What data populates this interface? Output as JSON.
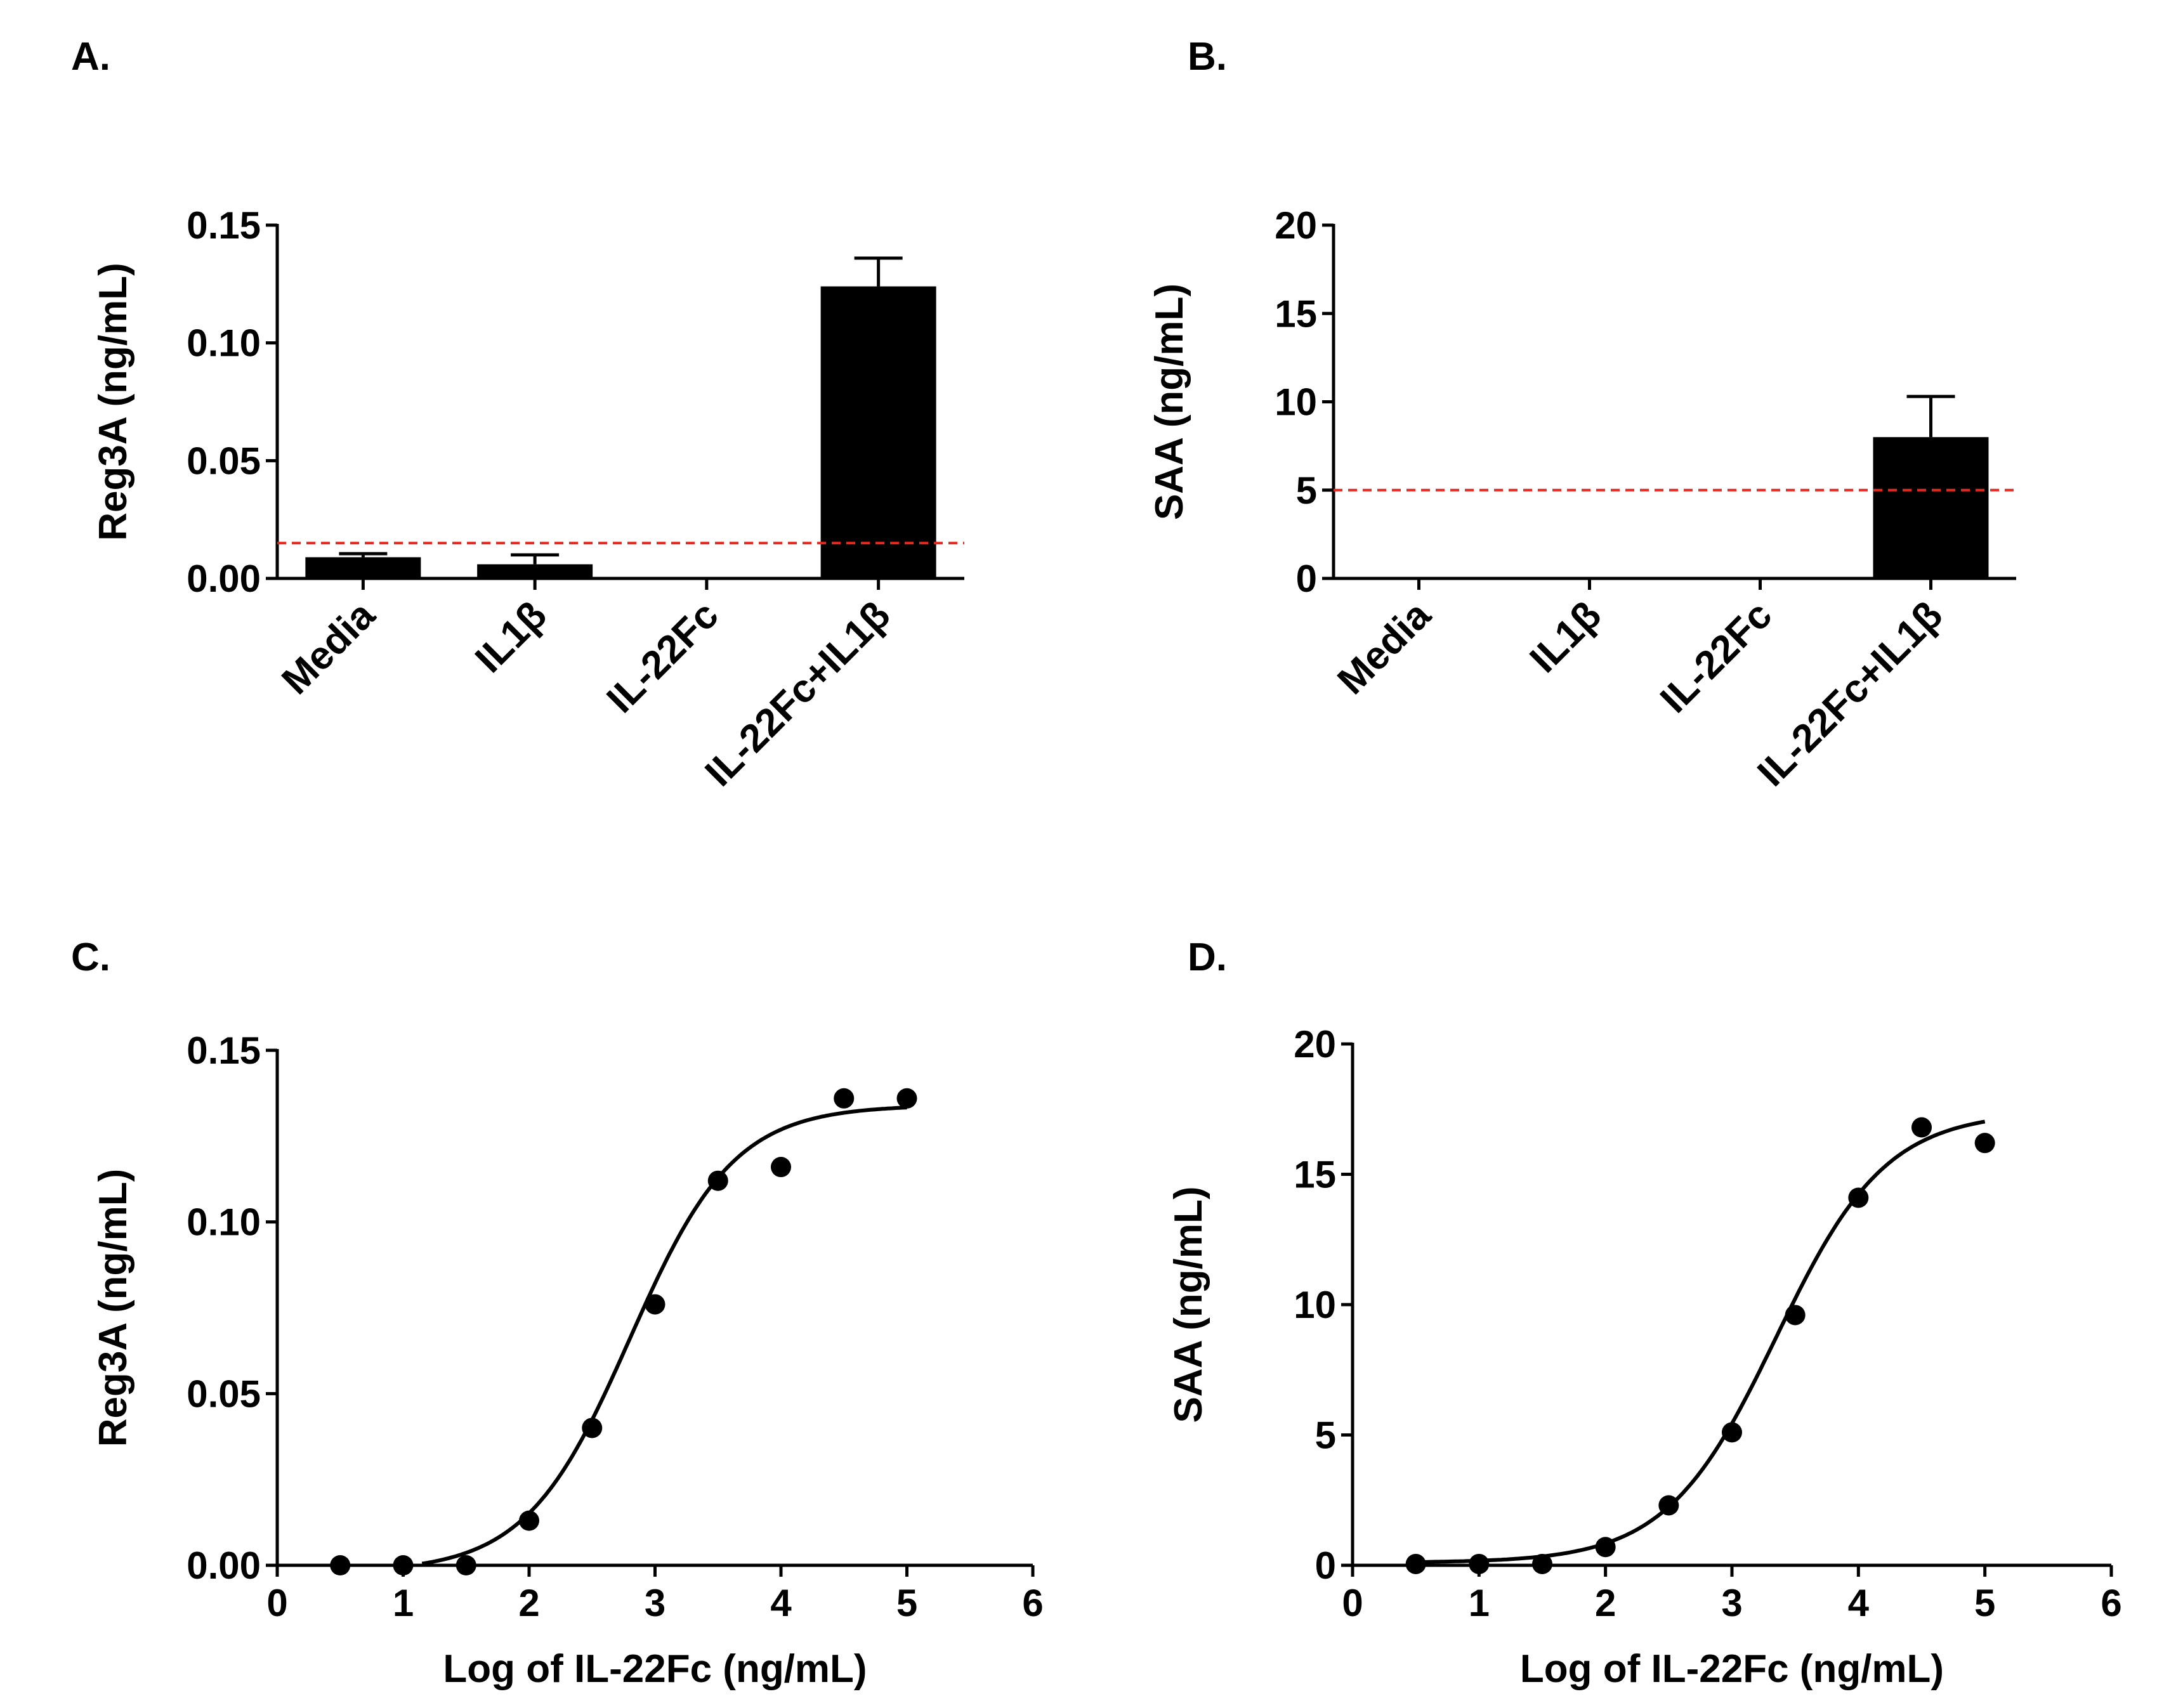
{
  "chart_data": [
    {
      "panel": "A.",
      "type": "bar",
      "ylabel": "Reg3A (ng/mL)",
      "xlabel": "",
      "categories": [
        "Media",
        "IL1β",
        "IL-22Fc",
        "IL-22Fc+IL1β"
      ],
      "values": [
        0.009,
        0.006,
        0.0,
        0.124
      ],
      "error_plus": [
        0.0015,
        0.004,
        0.0,
        0.012
      ],
      "ylim": [
        0,
        0.15
      ],
      "yticks": [
        0.0,
        0.05,
        0.1,
        0.15
      ],
      "ytick_labels": [
        "0.00",
        "0.05",
        "0.10",
        "0.15"
      ],
      "reference_line": {
        "value": 0.015,
        "color": "#e8271e",
        "style": "dashed"
      },
      "bar_color": "#000000"
    },
    {
      "panel": "B.",
      "type": "bar",
      "ylabel": "SAA (ng/mL)",
      "xlabel": "",
      "categories": [
        "Media",
        "IL1β",
        "IL-22Fc",
        "IL-22Fc+IL1β"
      ],
      "values": [
        0,
        0,
        0,
        8.0
      ],
      "error_plus": [
        0,
        0,
        0,
        2.3
      ],
      "ylim": [
        0,
        20
      ],
      "yticks": [
        0,
        5,
        10,
        15,
        20
      ],
      "ytick_labels": [
        "0",
        "5",
        "10",
        "15",
        "20"
      ],
      "reference_line": {
        "value": 5,
        "color": "#e8271e",
        "style": "dashed"
      },
      "bar_color": "#000000"
    },
    {
      "panel": "C.",
      "type": "scatter",
      "ylabel": "Reg3A (ng/mL)",
      "xlabel": "Log of IL-22Fc (ng/mL)",
      "x": [
        0.5,
        1,
        1.5,
        2,
        2.5,
        3,
        3.5,
        4,
        4.5,
        5
      ],
      "y": [
        0.0,
        0.0,
        0.0,
        0.013,
        0.04,
        0.076,
        0.112,
        0.116,
        0.136,
        0.136
      ],
      "xlim": [
        0,
        6
      ],
      "ylim": [
        0,
        0.15
      ],
      "xticks": [
        0,
        1,
        2,
        3,
        4,
        5,
        6
      ],
      "xtick_labels": [
        "0",
        "1",
        "2",
        "3",
        "4",
        "5",
        "6"
      ],
      "yticks": [
        0.0,
        0.05,
        0.1,
        0.15
      ],
      "ytick_labels": [
        "0.00",
        "0.05",
        "0.10",
        "0.15"
      ],
      "fit": {
        "model": "4PL",
        "bottom": -0.002,
        "top": 0.134,
        "logEC50": 2.8,
        "hill": 1.05,
        "x_start": 1.15,
        "x_end": 5
      }
    },
    {
      "panel": "D.",
      "type": "scatter",
      "ylabel": "SAA (ng/mL)",
      "xlabel": "Log of IL-22Fc (ng/mL)",
      "x": [
        0.5,
        1,
        1.5,
        2,
        2.5,
        3,
        3.5,
        4,
        4.5,
        5
      ],
      "y": [
        0.05,
        0.05,
        0.05,
        0.7,
        2.3,
        5.1,
        9.6,
        14.1,
        16.8,
        16.2
      ],
      "xlim": [
        0,
        6
      ],
      "ylim": [
        0,
        20
      ],
      "xticks": [
        0,
        1,
        2,
        3,
        4,
        5,
        6
      ],
      "xtick_labels": [
        "0",
        "1",
        "2",
        "3",
        "4",
        "5",
        "6"
      ],
      "yticks": [
        0,
        5,
        10,
        15,
        20
      ],
      "ytick_labels": [
        "0",
        "5",
        "10",
        "15",
        "20"
      ],
      "fit": {
        "model": "4PL",
        "bottom": 0.1,
        "top": 17.4,
        "logEC50": 3.35,
        "hill": 1.0,
        "x_start": 0.5,
        "x_end": 5
      }
    }
  ]
}
